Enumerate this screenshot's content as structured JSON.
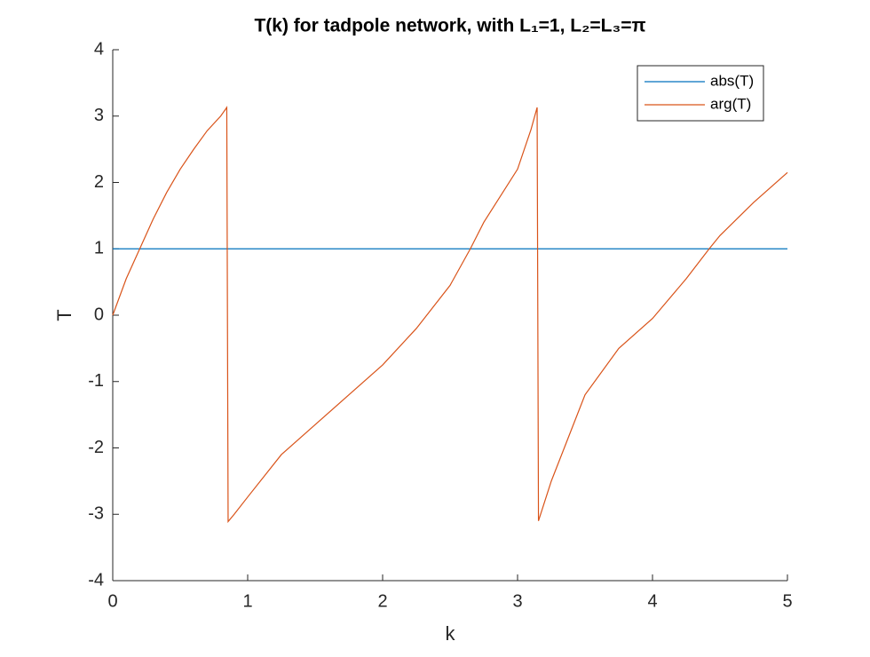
{
  "chart_data": {
    "type": "line",
    "title": "T(k) for tadpole network, with L₁=1, L₂=L₃=π",
    "xlabel": "k",
    "ylabel": "T",
    "xlim": [
      0,
      5
    ],
    "ylim": [
      -4,
      4
    ],
    "xticks": [
      0,
      1,
      2,
      3,
      4,
      5
    ],
    "yticks": [
      -4,
      -3,
      -2,
      -1,
      0,
      1,
      2,
      3,
      4
    ],
    "legend": "top-right",
    "series": [
      {
        "name": "abs(T)",
        "color": "#0072bd",
        "x": [
          0,
          5
        ],
        "values": [
          1,
          1
        ]
      },
      {
        "name": "arg(T)",
        "color": "#d95319",
        "x": [
          0,
          0.1,
          0.2,
          0.3,
          0.4,
          0.5,
          0.6,
          0.7,
          0.8,
          0.845,
          0.855,
          0.9,
          1.0,
          1.25,
          1.5,
          1.75,
          2.0,
          2.25,
          2.5,
          2.65,
          2.75,
          3.0,
          3.1,
          3.145,
          3.155,
          3.25,
          3.5,
          3.75,
          4.0,
          4.25,
          4.42,
          4.5,
          4.75,
          5.0
        ],
        "values": [
          0,
          0.55,
          1.0,
          1.45,
          1.85,
          2.2,
          2.5,
          2.78,
          3.0,
          3.13,
          -3.11,
          -3.0,
          -2.74,
          -2.1,
          -1.65,
          -1.2,
          -0.75,
          -0.2,
          0.45,
          1.0,
          1.4,
          2.2,
          2.8,
          3.13,
          -3.1,
          -2.5,
          -1.2,
          -0.5,
          -0.05,
          0.55,
          1.0,
          1.2,
          1.7,
          2.15
        ]
      }
    ]
  }
}
